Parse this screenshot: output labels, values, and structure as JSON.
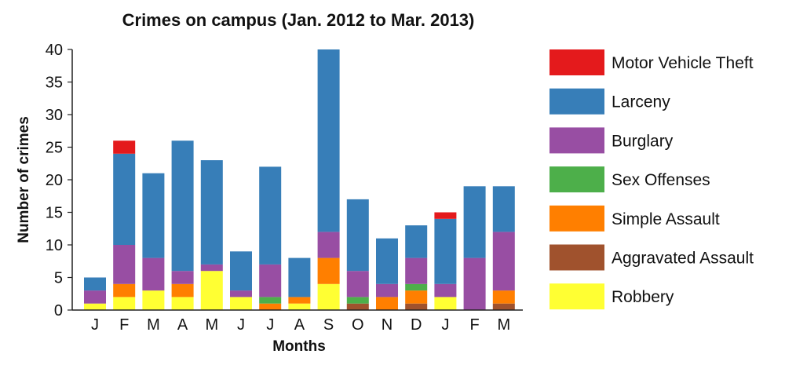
{
  "chart_data": {
    "type": "bar",
    "stacked": true,
    "title": "Crimes on campus (Jan. 2012 to Mar. 2013)",
    "xlabel": "Months",
    "ylabel": "Number of crimes",
    "categories": [
      "J",
      "F",
      "M",
      "A",
      "M",
      "J",
      "J",
      "A",
      "S",
      "O",
      "N",
      "D",
      "J",
      "F",
      "M"
    ],
    "ylim": [
      0,
      40
    ],
    "yticks": [
      0,
      5,
      10,
      15,
      20,
      25,
      30,
      35,
      40
    ],
    "grid": false,
    "legend_position": "right",
    "series": [
      {
        "name": "Robbery",
        "color": "#FFFF33",
        "values": [
          1,
          2,
          3,
          2,
          6,
          2,
          0,
          1,
          4,
          0,
          0,
          0,
          2,
          0,
          0
        ]
      },
      {
        "name": "Aggravated Assault",
        "color": "#A0522D",
        "values": [
          0,
          0,
          0,
          0,
          0,
          0,
          0,
          0,
          0,
          1,
          0,
          1,
          0,
          0,
          1
        ]
      },
      {
        "name": "Simple Assault",
        "color": "#FF7F00",
        "values": [
          0,
          2,
          0,
          2,
          0,
          0,
          1,
          1,
          4,
          0,
          2,
          2,
          0,
          0,
          2
        ]
      },
      {
        "name": "Sex Offenses",
        "color": "#4DAF4A",
        "values": [
          0,
          0,
          0,
          0,
          0,
          0,
          1,
          0,
          0,
          1,
          0,
          1,
          0,
          0,
          0
        ]
      },
      {
        "name": "Burglary",
        "color": "#984EA3",
        "values": [
          2,
          6,
          5,
          2,
          1,
          1,
          5,
          0,
          4,
          4,
          2,
          4,
          2,
          8,
          9
        ]
      },
      {
        "name": "Larceny",
        "color": "#377EB8",
        "values": [
          2,
          14,
          13,
          20,
          16,
          6,
          15,
          6,
          28,
          11,
          7,
          5,
          10,
          11,
          7
        ]
      },
      {
        "name": "Motor Vehicle Theft",
        "color": "#E41A1C",
        "values": [
          0,
          2,
          0,
          0,
          0,
          0,
          0,
          0,
          0,
          0,
          0,
          0,
          1,
          0,
          0
        ]
      }
    ],
    "legend_order": [
      "Motor Vehicle Theft",
      "Larceny",
      "Burglary",
      "Sex Offenses",
      "Simple Assault",
      "Aggravated Assault",
      "Robbery"
    ]
  }
}
